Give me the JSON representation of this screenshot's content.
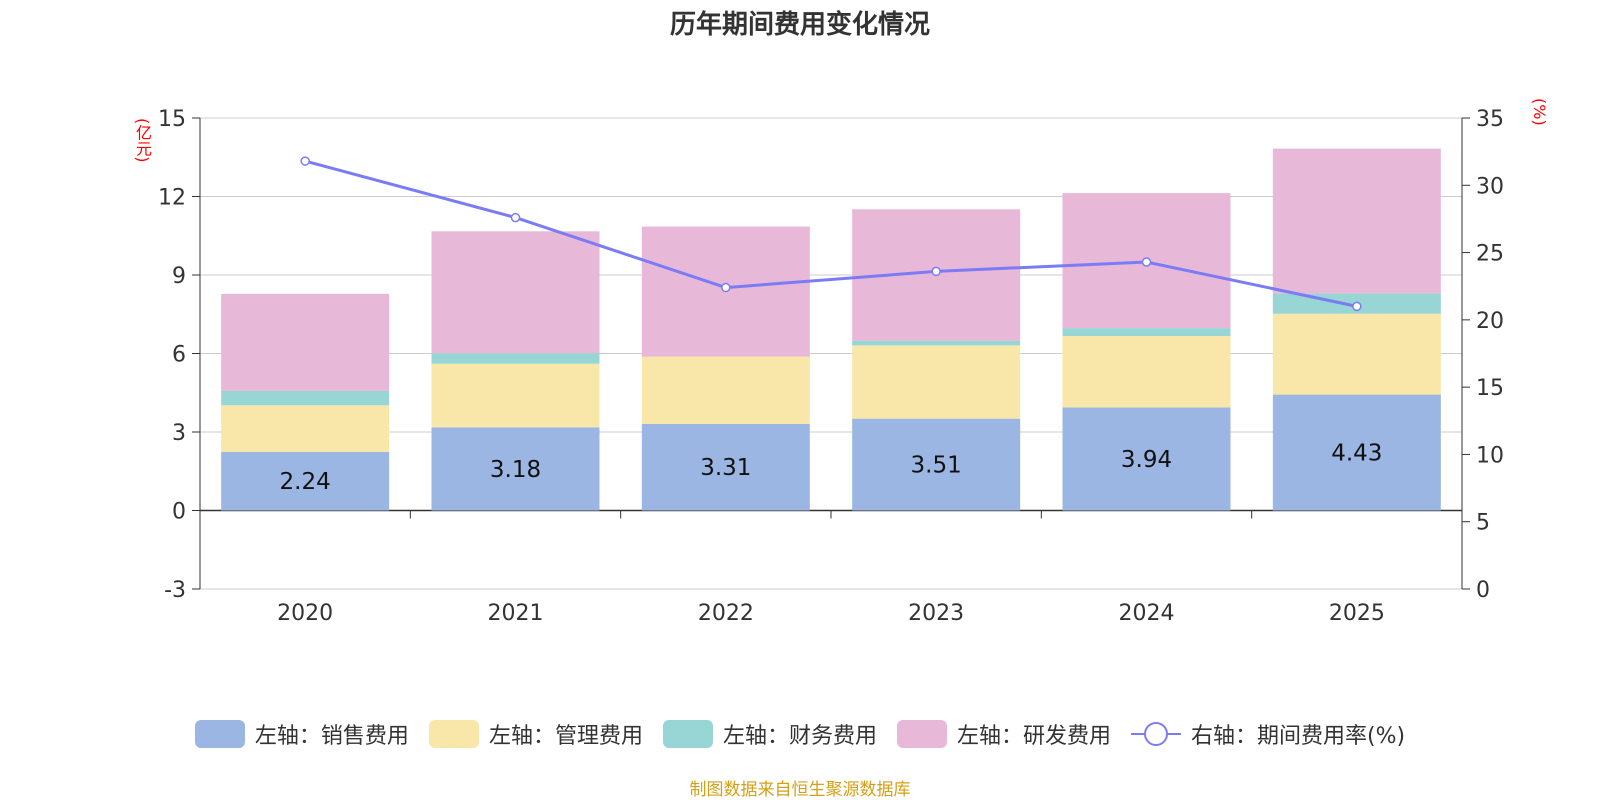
{
  "chart_data": {
    "type": "bar",
    "stacked": true,
    "title": "历年期间费用变化情况",
    "categories": [
      "2020",
      "2021",
      "2022",
      "2023",
      "2024",
      "2025"
    ],
    "left_axis": {
      "unit": "(亿元)",
      "range": [
        -3,
        15
      ],
      "ticks": [
        -3,
        0,
        3,
        6,
        9,
        12,
        15
      ]
    },
    "right_axis": {
      "unit": "(%)",
      "range": [
        0,
        35
      ],
      "ticks": [
        0,
        5,
        10,
        15,
        20,
        25,
        30,
        35
      ]
    },
    "series": [
      {
        "name": "左轴：销售费用",
        "axis": "left",
        "color": "#9bb6e2",
        "values": [
          2.24,
          3.18,
          3.31,
          3.51,
          3.94,
          4.43
        ],
        "show_labels": true
      },
      {
        "name": "左轴：管理费用",
        "axis": "left",
        "color": "#f8e7a8",
        "values": [
          1.78,
          2.43,
          2.57,
          2.8,
          2.73,
          3.09
        ]
      },
      {
        "name": "左轴：财务费用",
        "axis": "left",
        "color": "#98d5d5",
        "values": [
          0.55,
          0.4,
          0.0,
          0.18,
          0.3,
          0.77
        ]
      },
      {
        "name": "左轴：研发费用",
        "axis": "left",
        "color": "#e8b8d8",
        "values": [
          3.71,
          4.66,
          4.97,
          5.02,
          5.16,
          5.54
        ]
      }
    ],
    "line_series": {
      "name": "右轴：期间费用率(%)",
      "axis": "right",
      "color": "#7b7cf5",
      "values": [
        31.8,
        27.6,
        22.4,
        23.6,
        24.3,
        21.0
      ]
    },
    "grid": true,
    "legend_position": "bottom"
  },
  "source": "制图数据来自恒生聚源数据库"
}
